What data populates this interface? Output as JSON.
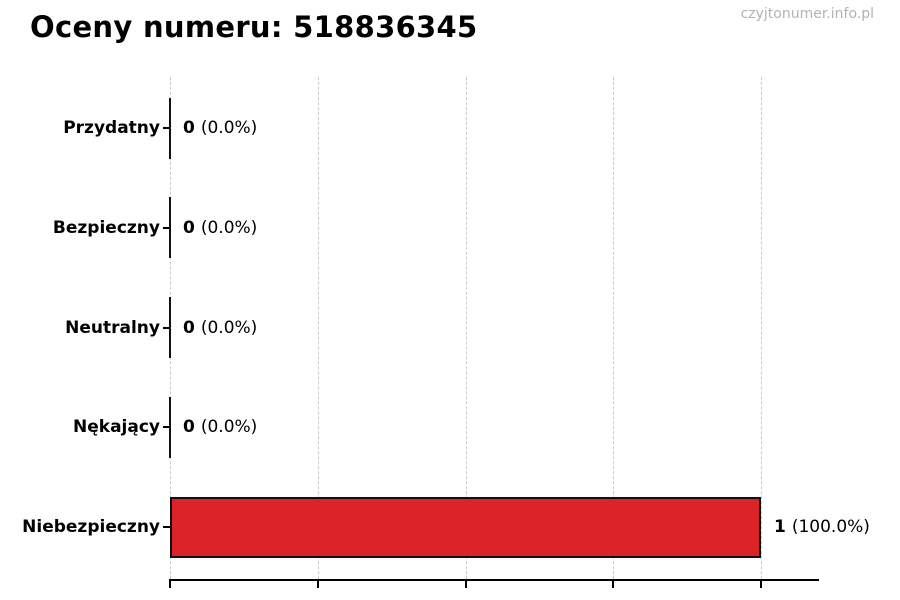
{
  "page": {
    "background_color": "#ffffff",
    "watermark": "czyjtonumer.info.pl",
    "watermark_color": "#b3b3b3"
  },
  "chart_data": {
    "type": "bar",
    "orientation": "horizontal",
    "title": "Oceny numeru: 518836345",
    "categories": [
      "Przydatny",
      "Bezpieczny",
      "Neutralny",
      "Nękający",
      "Niebezpieczny"
    ],
    "values": [
      0,
      0,
      0,
      0,
      1
    ],
    "percents": [
      0.0,
      0.0,
      0.0,
      0.0,
      100.0
    ],
    "count_labels": [
      "0",
      "0",
      "0",
      "0",
      "1"
    ],
    "percent_labels": [
      "(0.0%)",
      "(0.0%)",
      "(0.0%)",
      "(0.0%)",
      "(100.0%)"
    ],
    "xlim": [
      0,
      1
    ],
    "x_ticks": [
      0,
      0.25,
      0.5,
      0.75,
      1.0
    ],
    "x_tick_labels_visible": false,
    "grid": "vertical-dashed",
    "gridline_color": "#cccccc",
    "bar_color": "#dc2327",
    "bar_edge_color": "#111111",
    "axis_color": "#000000",
    "legend": "none"
  }
}
